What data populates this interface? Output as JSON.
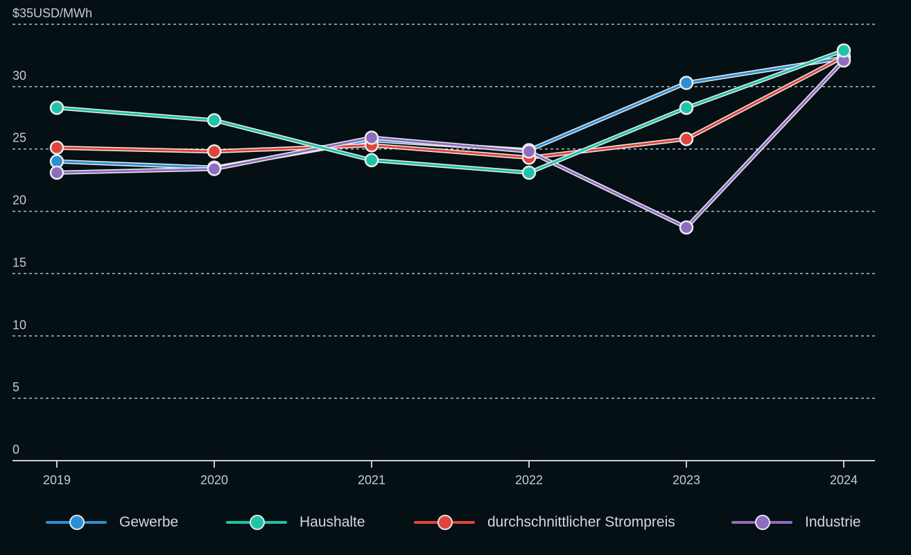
{
  "chart_data": {
    "type": "line",
    "ylabel": "USD/MWh",
    "ylim": [
      0,
      35
    ],
    "yticks": [
      0,
      5,
      10,
      15,
      20,
      25,
      30,
      35
    ],
    "ytick_labels": [
      "0",
      "5",
      "10",
      "15",
      "20",
      "25",
      "30",
      "$35USD/MWh"
    ],
    "categories": [
      "2019",
      "2020",
      "2021",
      "2022",
      "2023",
      "2024"
    ],
    "grid": true,
    "legend_position": "bottom",
    "series": [
      {
        "name": "Gewerbe",
        "color": "#2b8fd6",
        "values": [
          24.0,
          23.5,
          25.7,
          24.9,
          30.3,
          32.3
        ]
      },
      {
        "name": "durchschnittlicher Strompreis",
        "color": "#e0453a",
        "values": [
          25.1,
          24.8,
          25.3,
          24.3,
          25.8,
          32.4
        ]
      },
      {
        "name": "Industrie",
        "color": "#8e6cc0",
        "values": [
          23.1,
          23.4,
          25.9,
          24.8,
          18.7,
          32.1
        ]
      },
      {
        "name": "Haushalte",
        "color": "#1fc4a8",
        "values": [
          28.3,
          27.3,
          24.1,
          23.1,
          28.3,
          32.9
        ]
      }
    ],
    "legend": [
      {
        "name": "Gewerbe",
        "color": "#2b8fd6"
      },
      {
        "name": "Haushalte",
        "color": "#1fc4a8"
      },
      {
        "name": "durchschnittlicher Strompreis",
        "color": "#e0453a"
      },
      {
        "name": "Industrie",
        "color": "#8e6cc0"
      }
    ]
  },
  "colors": {
    "background": "#041014",
    "grid": "#d8dcdd",
    "axis": "#c9cfd1",
    "marker_outline": "#ececec"
  }
}
